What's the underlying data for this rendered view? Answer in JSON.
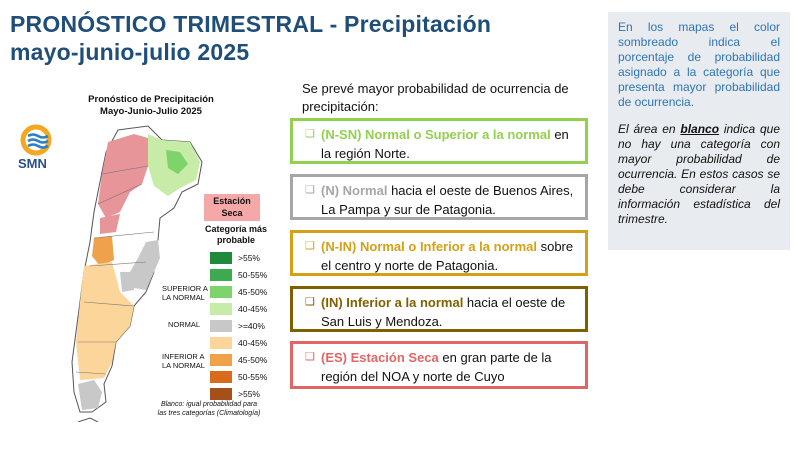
{
  "header": {
    "title_line1": "PRONÓSTICO TRIMESTRAL - Precipitación",
    "title_line2": "mayo-junio-julio 2025"
  },
  "map": {
    "title_line1": "Pronóstico de Precipitación",
    "title_line2": "Mayo-Junio-Julio 2025",
    "logo_text": "SMN",
    "seca_line1": "Estación",
    "seca_line2": "Seca",
    "category_title_line1": "Categoría más",
    "category_title_line2": "probable",
    "legend": [
      {
        "label": ">55%",
        "color": "#1f8a3a"
      },
      {
        "label": "50-55%",
        "color": "#3daa4f"
      },
      {
        "label": "45-50%",
        "color": "#7fd36b"
      },
      {
        "label": "40-45%",
        "color": "#c6eca8"
      },
      {
        "label": ">=40%",
        "color": "#c8c8c8"
      },
      {
        "label": "40-45%",
        "color": "#fbd59a"
      },
      {
        "label": "45-50%",
        "color": "#f0a24a"
      },
      {
        "label": "50-55%",
        "color": "#d86b1c"
      },
      {
        "label": ">55%",
        "color": "#a5501a"
      }
    ],
    "groups": {
      "superior_line1": "SUPERIOR A",
      "superior_line2": "LA NORMAL",
      "normal": "NORMAL",
      "inferior_line1": "INFERIOR A",
      "inferior_line2": "LA NORMAL"
    },
    "note_line1": "Blanco: igual probabilidad para",
    "note_line2": "las tres categorías (Climatología)"
  },
  "main": {
    "intro": "Se prevé mayor probabilidad de ocurrencia de precipitación:",
    "categories": [
      {
        "check": "❑",
        "highlight": "(N-SN) Normal o Superior a la normal",
        "rest": " en la región Norte.",
        "color": "#92d050"
      },
      {
        "check": "❑",
        "highlight": "(N) Normal",
        "rest": " hacia el oeste de Buenos Aires, La Pampa y sur de Patagonia.",
        "color": "#a6a6a6"
      },
      {
        "check": "❑",
        "highlight": "(N-IN) Normal o Inferior a la normal",
        "rest": " sobre el centro y norte de Patagonia.",
        "color": "#d4a017"
      },
      {
        "check": "❑",
        "highlight": "(IN) Inferior a la normal",
        "rest": " hacia el oeste de San Luis y Mendoza.",
        "color": "#7f6000"
      },
      {
        "check": "❑",
        "highlight": "(ES) Estación Seca",
        "rest": " en gran parte de la región del NOA y norte de Cuyo",
        "color": "#e06666"
      }
    ]
  },
  "sidebar": {
    "p1": "En los mapas el color sombreado indica el porcentaje de probabilidad asignado a la categoría que presenta mayor probabilidad de ocurrencia.",
    "p2_pre": "El área en ",
    "p2_hl": "blanco",
    "p2_post": " indica que no hay una categoría con mayor probabilidad de ocurrencia. En estos casos se debe considerar la información estadística del trimestre."
  }
}
